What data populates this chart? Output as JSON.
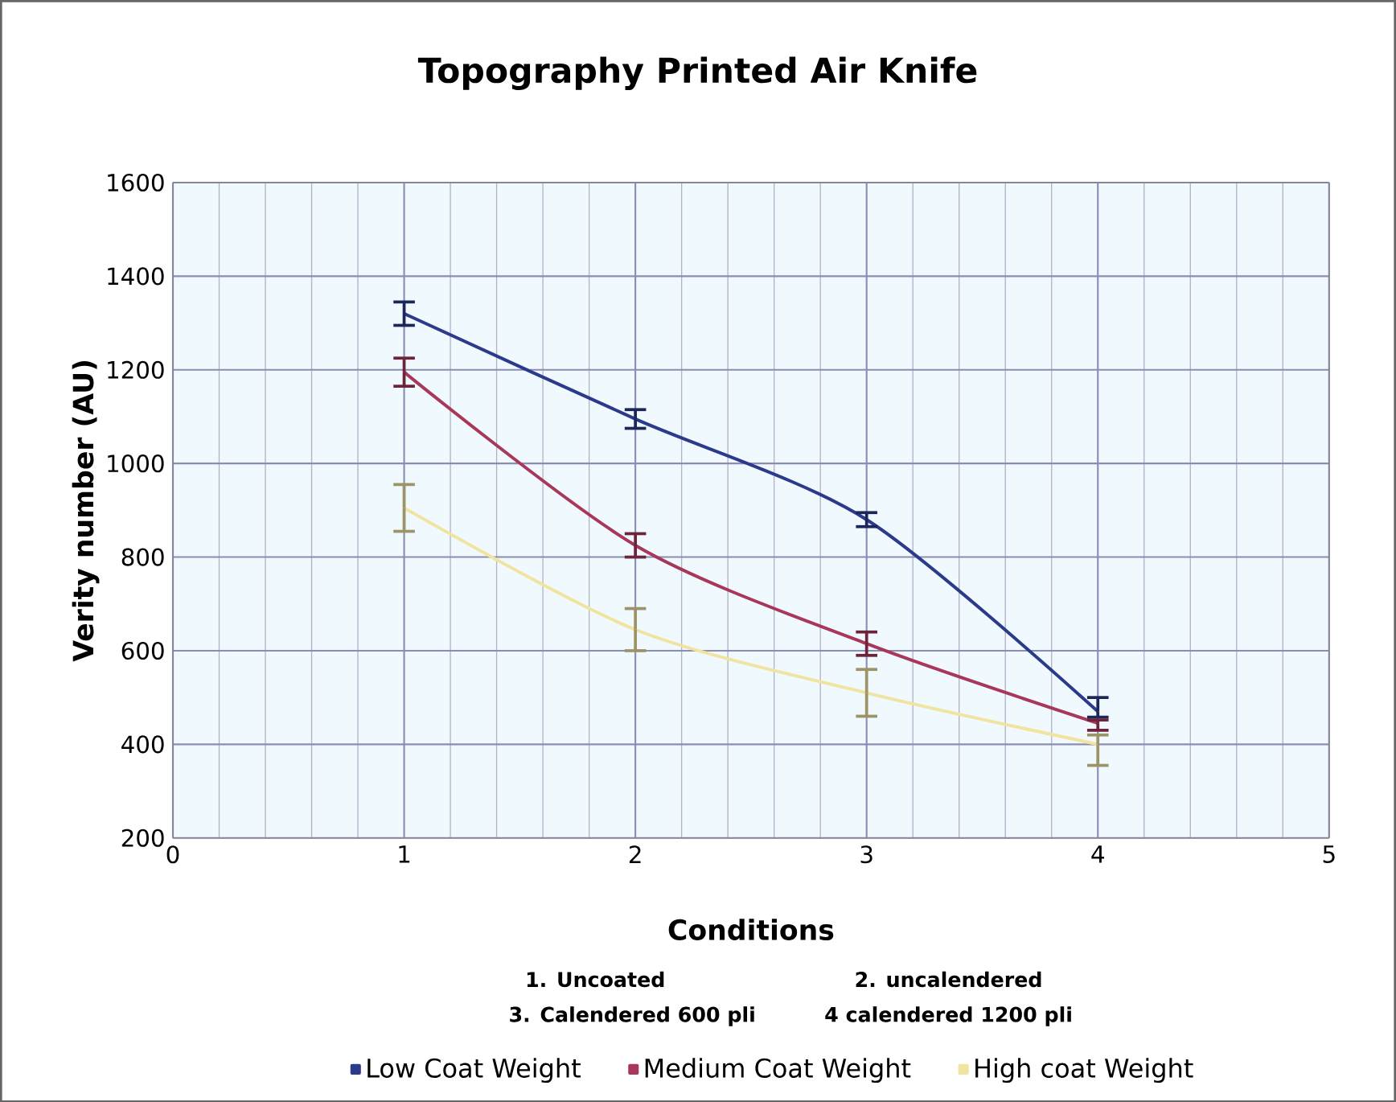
{
  "chart_data": {
    "type": "line",
    "title": "Topography Printed Air Knife",
    "xlabel": "Conditions",
    "ylabel": "Verity number (AU)",
    "x": [
      1,
      2,
      3,
      4
    ],
    "series": [
      {
        "name": "Low Coat Weight",
        "color": "#2b3a8a",
        "values": [
          1320,
          1095,
          880,
          470
        ],
        "errors": [
          25,
          20,
          15,
          [
            458,
            500
          ]
        ]
      },
      {
        "name": "Medium Coat Weight",
        "color": "#a8385a",
        "values": [
          1195,
          825,
          615,
          445
        ],
        "errors": [
          30,
          25,
          25,
          [
            430,
            452
          ]
        ]
      },
      {
        "name": "High coat Weight",
        "color": "#f0e4a0",
        "values": [
          905,
          645,
          510,
          400
        ],
        "errors": [
          50,
          45,
          50,
          [
            355,
            420
          ]
        ]
      }
    ],
    "xlim": [
      0,
      5
    ],
    "xticks": [
      0,
      1,
      2,
      3,
      4,
      5
    ],
    "ylim": [
      200,
      1600
    ],
    "yticks": [
      200,
      400,
      600,
      800,
      1000,
      1200,
      1400,
      1600
    ],
    "grid": true,
    "legend": "bottom",
    "annotations": [
      "1. Uncoated",
      "2. uncalendered",
      "3. Calendered 600 pli",
      "4 calendered 1200 pli"
    ]
  }
}
